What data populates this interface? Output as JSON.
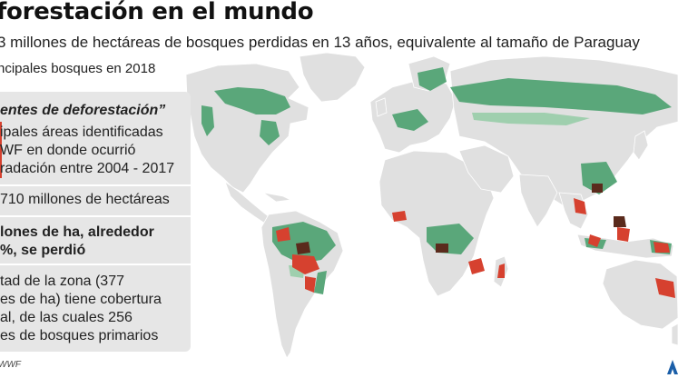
{
  "header": {
    "title": "forestación en el mundo",
    "subtitle": "3 millones de hectáreas de bosques perdidas en 13 años, equivalente al tamaño de Paraguay",
    "forest_legend": "ncipales bosques en 2018"
  },
  "panel": {
    "heading": "entes de deforestación”",
    "areas_text": "ipales áreas identificadas\nWF en donde ocurrió\nradación entre 2004 - 2017",
    "total_text": "710 millones de hectáreas",
    "lost_text": "lones de ha, alrededor\n%, se perdió",
    "coverage_text": "tad de la zona (377\nes de ha) tiene cobertura\nal, de las cuales 256\nes de bosques primarios"
  },
  "footer": {
    "source": "WWF"
  },
  "colors": {
    "land": "#e0e0e0",
    "ocean": "#ffffff",
    "forest": "#5aa77a",
    "forest_light": "#9fcfae",
    "front_red": "#d6412f",
    "degradation_dark": "#5a2a1c",
    "panel_bg": "#e6e6e6"
  }
}
